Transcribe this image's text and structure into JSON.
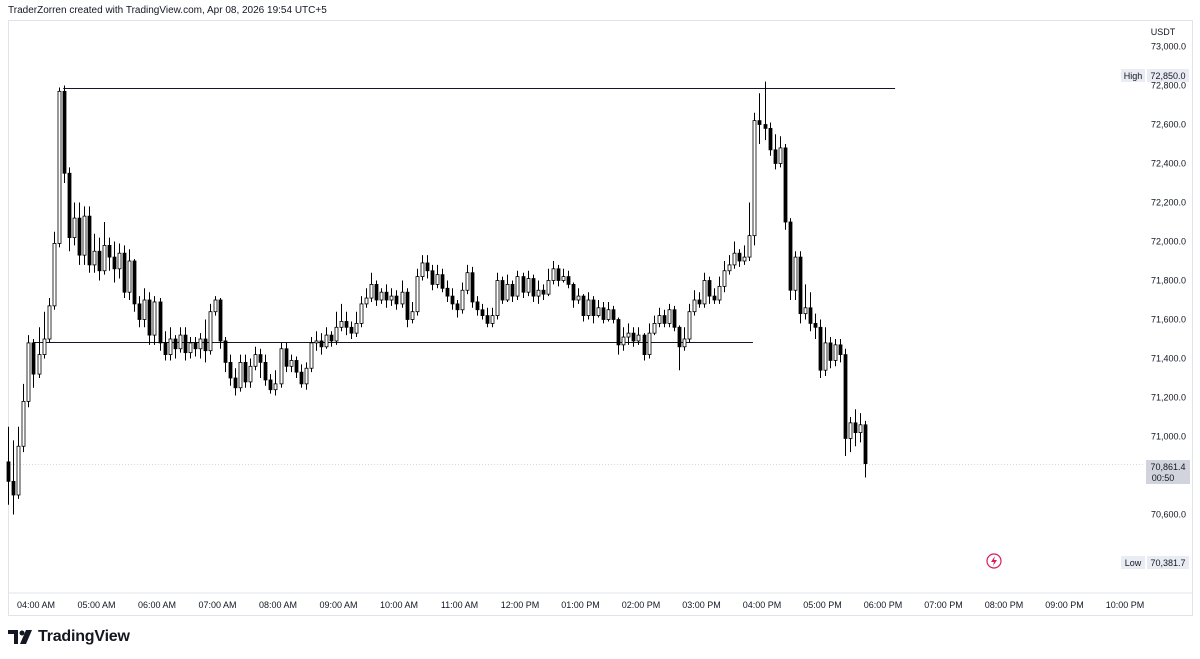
{
  "header": {
    "text": "TraderZorren created with TradingView.com, Apr 08, 2026 19:54 UTC+5"
  },
  "footer": {
    "brand": "TradingView"
  },
  "price_axis": {
    "currency": "USDT"
  },
  "markers": {
    "high": {
      "label": "High",
      "value": "72,850.0"
    },
    "low": {
      "label": "Low",
      "value": "70,381.7"
    },
    "last": {
      "value": "70,861.4",
      "countdown": "00:50"
    }
  },
  "colors": {
    "candle": "#000000",
    "candle_up_fill": "#ffffff",
    "line": "#131722",
    "grid": "#f0f3fa",
    "axis_text": "#131722",
    "flash": "#d81b60"
  },
  "chart_data": {
    "type": "candlestick",
    "title": "",
    "ylim": [
      70400,
      73050
    ],
    "y_ticks": [
      {
        "value": 73000,
        "label": "73,000.0"
      },
      {
        "value": 72800,
        "label": "72,800.0"
      },
      {
        "value": 72600,
        "label": "72,600.0"
      },
      {
        "value": 72400,
        "label": "72,400.0"
      },
      {
        "value": 72200,
        "label": "72,200.0"
      },
      {
        "value": 72000,
        "label": "72,000.0"
      },
      {
        "value": 71800,
        "label": "71,800.0"
      },
      {
        "value": 71600,
        "label": "71,600.0"
      },
      {
        "value": 71400,
        "label": "71,400.0"
      },
      {
        "value": 71200,
        "label": "71,200.0"
      },
      {
        "value": 71000,
        "label": "71,000.0"
      },
      {
        "value": 70600,
        "label": "70,600.0"
      }
    ],
    "x_ticks": [
      "04:00 AM",
      "05:00 AM",
      "06:00 AM",
      "07:00 AM",
      "08:00 AM",
      "09:00 AM",
      "10:00 AM",
      "11:00 AM",
      "12:00 PM",
      "01:00 PM",
      "02:00 PM",
      "03:00 PM",
      "04:00 PM",
      "05:00 PM",
      "06:00 PM",
      "07:00 PM",
      "08:00 PM",
      "09:00 PM",
      "10:00 PM"
    ],
    "x_range_hours": [
      3.5,
      22.5
    ],
    "candle_interval_minutes": 5,
    "start_hour": 3.5,
    "levels": [
      {
        "price": 72785,
        "from_hour": 4.45,
        "to_hour": 18.2
      },
      {
        "price": 71485,
        "from_hour": 3.95,
        "to_hour": 15.85
      }
    ],
    "candles": [
      [
        70870,
        70770,
        71050,
        70650
      ],
      [
        70770,
        70700,
        70980,
        70600
      ],
      [
        70700,
        70950,
        71050,
        70680
      ],
      [
        70950,
        71180,
        71270,
        70920
      ],
      [
        71180,
        71480,
        71520,
        71150
      ],
      [
        71480,
        71320,
        71500,
        71250
      ],
      [
        71320,
        71420,
        71560,
        71300
      ],
      [
        71420,
        71500,
        71640,
        71400
      ],
      [
        71500,
        71670,
        71710,
        71480
      ],
      [
        71670,
        71990,
        72050,
        71650
      ],
      [
        71990,
        72770,
        72790,
        71970
      ],
      [
        72770,
        72350,
        72800,
        72300
      ],
      [
        72350,
        72020,
        72380,
        71950
      ],
      [
        72020,
        72120,
        72200,
        71980
      ],
      [
        72120,
        71930,
        72200,
        71880
      ],
      [
        71930,
        72130,
        72180,
        71880
      ],
      [
        72130,
        71880,
        72180,
        71840
      ],
      [
        71880,
        71950,
        72040,
        71840
      ],
      [
        71950,
        71850,
        72020,
        71800
      ],
      [
        71850,
        71980,
        72100,
        71830
      ],
      [
        71980,
        71920,
        72020,
        71850
      ],
      [
        71920,
        71860,
        72000,
        71790
      ],
      [
        71860,
        71940,
        71990,
        71810
      ],
      [
        71940,
        71740,
        71980,
        71710
      ],
      [
        71740,
        71900,
        71960,
        71700
      ],
      [
        71900,
        71680,
        71910,
        71640
      ],
      [
        71680,
        71600,
        71720,
        71560
      ],
      [
        71600,
        71700,
        71760,
        71560
      ],
      [
        71700,
        71520,
        71740,
        71470
      ],
      [
        71520,
        71690,
        71720,
        71470
      ],
      [
        71690,
        71480,
        71710,
        71440
      ],
      [
        71480,
        71420,
        71540,
        71390
      ],
      [
        71420,
        71500,
        71560,
        71390
      ],
      [
        71500,
        71450,
        71520,
        71400
      ],
      [
        71450,
        71520,
        71560,
        71430
      ],
      [
        71520,
        71430,
        71560,
        71390
      ],
      [
        71430,
        71480,
        71510,
        71400
      ],
      [
        71480,
        71450,
        71510,
        71410
      ],
      [
        71450,
        71500,
        71530,
        71400
      ],
      [
        71500,
        71440,
        71600,
        71380
      ],
      [
        71440,
        71640,
        71680,
        71420
      ],
      [
        71640,
        71700,
        71720,
        71620
      ],
      [
        71700,
        71490,
        71710,
        71450
      ],
      [
        71490,
        71380,
        71510,
        71330
      ],
      [
        71380,
        71300,
        71420,
        71260
      ],
      [
        71300,
        71250,
        71350,
        71210
      ],
      [
        71250,
        71380,
        71420,
        71230
      ],
      [
        71380,
        71280,
        71420,
        71250
      ],
      [
        71280,
        71360,
        71400,
        71250
      ],
      [
        71360,
        71420,
        71460,
        71340
      ],
      [
        71420,
        71380,
        71450,
        71300
      ],
      [
        71380,
        71290,
        71420,
        71260
      ],
      [
        71290,
        71240,
        71320,
        71220
      ],
      [
        71240,
        71270,
        71340,
        71210
      ],
      [
        71270,
        71450,
        71480,
        71250
      ],
      [
        71450,
        71360,
        71480,
        71330
      ],
      [
        71360,
        71390,
        71420,
        71330
      ],
      [
        71390,
        71330,
        71410,
        71300
      ],
      [
        71330,
        71270,
        71370,
        71250
      ],
      [
        71270,
        71350,
        71380,
        71240
      ],
      [
        71350,
        71480,
        71510,
        71330
      ],
      [
        71480,
        71490,
        71540,
        71440
      ],
      [
        71490,
        71460,
        71530,
        71420
      ],
      [
        71460,
        71520,
        71560,
        71450
      ],
      [
        71520,
        71490,
        71540,
        71460
      ],
      [
        71490,
        71560,
        71640,
        71470
      ],
      [
        71560,
        71590,
        71680,
        71540
      ],
      [
        71590,
        71560,
        71640,
        71520
      ],
      [
        71560,
        71530,
        71590,
        71500
      ],
      [
        71530,
        71580,
        71640,
        71510
      ],
      [
        71580,
        71680,
        71720,
        71560
      ],
      [
        71680,
        71710,
        71760,
        71660
      ],
      [
        71710,
        71780,
        71840,
        71690
      ],
      [
        71780,
        71700,
        71800,
        71670
      ],
      [
        71700,
        71740,
        71760,
        71680
      ],
      [
        71740,
        71700,
        71780,
        71660
      ],
      [
        71700,
        71720,
        71760,
        71670
      ],
      [
        71720,
        71680,
        71750,
        71650
      ],
      [
        71680,
        71740,
        71800,
        71660
      ],
      [
        71740,
        71600,
        71760,
        71560
      ],
      [
        71600,
        71640,
        71690,
        71580
      ],
      [
        71640,
        71820,
        71860,
        71620
      ],
      [
        71820,
        71890,
        71930,
        71800
      ],
      [
        71890,
        71850,
        71930,
        71810
      ],
      [
        71850,
        71780,
        71880,
        71750
      ],
      [
        71780,
        71830,
        71880,
        71760
      ],
      [
        71830,
        71760,
        71860,
        71740
      ],
      [
        71760,
        71720,
        71800,
        71690
      ],
      [
        71720,
        71680,
        71760,
        71650
      ],
      [
        71680,
        71650,
        71700,
        71610
      ],
      [
        71650,
        71750,
        71790,
        71630
      ],
      [
        71750,
        71840,
        71880,
        71730
      ],
      [
        71840,
        71690,
        71870,
        71660
      ],
      [
        71690,
        71650,
        71720,
        71620
      ],
      [
        71650,
        71620,
        71680,
        71600
      ],
      [
        71620,
        71580,
        71660,
        71560
      ],
      [
        71580,
        71620,
        71660,
        71560
      ],
      [
        71620,
        71800,
        71840,
        71600
      ],
      [
        71800,
        71700,
        71820,
        71680
      ],
      [
        71700,
        71780,
        71830,
        71690
      ],
      [
        71780,
        71720,
        71800,
        71690
      ],
      [
        71720,
        71820,
        71850,
        71700
      ],
      [
        71820,
        71740,
        71840,
        71710
      ],
      [
        71740,
        71810,
        71850,
        71720
      ],
      [
        71810,
        71720,
        71830,
        71690
      ],
      [
        71720,
        71750,
        71800,
        71680
      ],
      [
        71750,
        71730,
        71780,
        71700
      ],
      [
        71730,
        71800,
        71860,
        71720
      ],
      [
        71800,
        71860,
        71900,
        71780
      ],
      [
        71860,
        71800,
        71880,
        71770
      ],
      [
        71800,
        71820,
        71860,
        71790
      ],
      [
        71820,
        71780,
        71850,
        71760
      ],
      [
        71780,
        71700,
        71790,
        71660
      ],
      [
        71700,
        71720,
        71760,
        71680
      ],
      [
        71720,
        71620,
        71730,
        71590
      ],
      [
        71620,
        71700,
        71740,
        71600
      ],
      [
        71700,
        71620,
        71720,
        71580
      ],
      [
        71620,
        71660,
        71700,
        71610
      ],
      [
        71660,
        71600,
        71690,
        71580
      ],
      [
        71600,
        71650,
        71690,
        71590
      ],
      [
        71650,
        71600,
        71670,
        71580
      ],
      [
        71600,
        71470,
        71610,
        71420
      ],
      [
        71470,
        71510,
        71560,
        71440
      ],
      [
        71510,
        71530,
        71580,
        71470
      ],
      [
        71530,
        71490,
        71560,
        71460
      ],
      [
        71490,
        71520,
        71560,
        71470
      ],
      [
        71520,
        71420,
        71530,
        71390
      ],
      [
        71420,
        71530,
        71580,
        71400
      ],
      [
        71530,
        71580,
        71620,
        71520
      ],
      [
        71580,
        71620,
        71660,
        71560
      ],
      [
        71620,
        71580,
        71650,
        71560
      ],
      [
        71580,
        71650,
        71680,
        71560
      ],
      [
        71650,
        71560,
        71670,
        71540
      ],
      [
        71560,
        71460,
        71570,
        71340
      ],
      [
        71460,
        71500,
        71560,
        71440
      ],
      [
        71500,
        71640,
        71680,
        71480
      ],
      [
        71640,
        71700,
        71750,
        71620
      ],
      [
        71700,
        71680,
        71740,
        71660
      ],
      [
        71680,
        71800,
        71840,
        71660
      ],
      [
        71800,
        71720,
        71820,
        71680
      ],
      [
        71720,
        71700,
        71760,
        71680
      ],
      [
        71700,
        71770,
        71820,
        71680
      ],
      [
        71770,
        71850,
        71900,
        71740
      ],
      [
        71850,
        71880,
        71930,
        71830
      ],
      [
        71880,
        71940,
        72000,
        71860
      ],
      [
        71940,
        71900,
        71960,
        71870
      ],
      [
        71900,
        71920,
        71980,
        71880
      ],
      [
        71920,
        72030,
        72200,
        71900
      ],
      [
        72030,
        72620,
        72660,
        71980
      ],
      [
        72620,
        72600,
        72760,
        72500
      ],
      [
        72600,
        72580,
        72820,
        72520
      ],
      [
        72580,
        72470,
        72610,
        72440
      ],
      [
        72470,
        72400,
        72550,
        72370
      ],
      [
        72400,
        72480,
        72540,
        72380
      ],
      [
        72480,
        72100,
        72500,
        72060
      ],
      [
        72100,
        71750,
        72120,
        71700
      ],
      [
        71750,
        71920,
        71950,
        71700
      ],
      [
        71920,
        71630,
        71950,
        71580
      ],
      [
        71630,
        71660,
        71780,
        71600
      ],
      [
        71660,
        71580,
        71740,
        71540
      ],
      [
        71580,
        71560,
        71630,
        71500
      ],
      [
        71560,
        71340,
        71600,
        71300
      ],
      [
        71340,
        71480,
        71560,
        71310
      ],
      [
        71480,
        71390,
        71510,
        71350
      ],
      [
        71390,
        71470,
        71500,
        71360
      ],
      [
        71470,
        71420,
        71500,
        71380
      ],
      [
        71420,
        70990,
        71450,
        70900
      ],
      [
        70990,
        71070,
        71100,
        70920
      ],
      [
        71070,
        71020,
        71140,
        70950
      ],
      [
        71020,
        71060,
        71120,
        70970
      ],
      [
        71060,
        70861,
        71080,
        70790
      ]
    ]
  }
}
